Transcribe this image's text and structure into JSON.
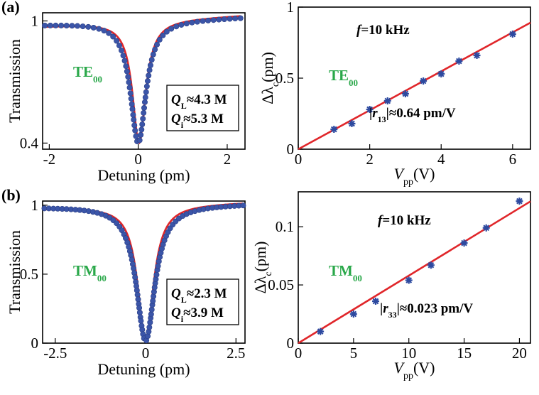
{
  "chart_data": [
    {
      "id": "a-left",
      "panel_label": "(a)",
      "type": "line",
      "xlabel": "Detuning (pm)",
      "ylabel": "Transmission",
      "xlim": [
        -2.15,
        2.4
      ],
      "ylim": [
        0.37,
        1.04
      ],
      "xticks": [
        -2,
        0,
        2
      ],
      "xtick_labels": [
        "-2",
        "0",
        "2"
      ],
      "yticks": [
        1,
        0.4
      ],
      "ytick_labels": [
        "1",
        "0.4"
      ],
      "mode_label": "TE",
      "mode_sub": "00",
      "q_labels": [
        {
          "sym": "Q",
          "sub": "L",
          "text": "≈4.3 M"
        },
        {
          "sym": "Q",
          "sub": "i",
          "text": "≈5.3 M"
        }
      ],
      "series": [
        {
          "kind": "measured-points",
          "curve": {
            "center": 0.0,
            "fwhm": 0.42,
            "depth": 0.6,
            "tilt": 0.008
          },
          "x_range": [
            -2.1,
            2.3
          ],
          "n": 70
        },
        {
          "kind": "lorentzian-fit",
          "curve": {
            "center": 0.02,
            "fwhm": 0.36,
            "depth": 0.6,
            "tilt": 0.012
          },
          "x_range": [
            -2.1,
            2.3
          ]
        }
      ]
    },
    {
      "id": "a-right",
      "type": "scatter",
      "xlabel_sym": "V",
      "xlabel_sub": "pp",
      "xlabel_unit": "(V)",
      "ylabel_sym": "Δλ",
      "ylabel_sub": "c",
      "ylabel_unit": "(pm)",
      "xlim": [
        0,
        6.5
      ],
      "ylim": [
        0,
        1.0
      ],
      "xticks": [
        0,
        2,
        4,
        6
      ],
      "xtick_labels": [
        "0",
        "2",
        "4",
        "6"
      ],
      "yticks": [
        0,
        0.5,
        1
      ],
      "ytick_labels": [
        "0",
        "0.5",
        "1"
      ],
      "freq_label": "=10 kHz",
      "freq_sym": "f",
      "mode_label": "TE",
      "mode_sub": "00",
      "coef_label": {
        "sym": "r",
        "sub": "13",
        "text": "≈0.64 pm/V"
      },
      "series": [
        {
          "kind": "data",
          "x": [
            1,
            1.5,
            2,
            2.5,
            3,
            3.5,
            4,
            4.5,
            5,
            6
          ],
          "y": [
            0.14,
            0.18,
            0.28,
            0.34,
            0.39,
            0.48,
            0.53,
            0.62,
            0.66,
            0.81
          ]
        },
        {
          "kind": "linear-fit",
          "slope": 0.137,
          "intercept": 0
        }
      ]
    },
    {
      "id": "b-left",
      "panel_label": "(b)",
      "type": "line",
      "xlabel": "Detuning (pm)",
      "ylabel": "Transmission",
      "xlim": [
        -2.85,
        2.75
      ],
      "ylim": [
        0,
        1.03
      ],
      "xticks": [
        -2.5,
        0,
        2.5
      ],
      "xtick_labels": [
        "-2.5",
        "0",
        "2.5"
      ],
      "yticks": [
        0,
        0.5,
        1
      ],
      "ytick_labels": [
        "0",
        "0.5",
        "1"
      ],
      "mode_label": "TM",
      "mode_sub": "00",
      "q_labels": [
        {
          "sym": "Q",
          "sub": "L",
          "text": "≈2.3 M"
        },
        {
          "sym": "Q",
          "sub": "i",
          "text": "≈3.9 M"
        }
      ],
      "series": [
        {
          "kind": "measured-points",
          "curve": {
            "center": 0.0,
            "fwhm": 0.62,
            "depth": 0.985,
            "tilt": 0.004
          },
          "x_range": [
            -2.8,
            2.7
          ],
          "n": 90
        },
        {
          "kind": "lorentzian-fit",
          "curve": {
            "center": 0.0,
            "fwhm": 0.52,
            "depth": 0.99,
            "tilt": 0.008
          },
          "x_range": [
            -2.8,
            2.7
          ]
        }
      ]
    },
    {
      "id": "b-right",
      "type": "scatter",
      "xlabel_sym": "V",
      "xlabel_sub": "pp",
      "xlabel_unit": "(V)",
      "ylabel_sym": "Δλ",
      "ylabel_sub": "c",
      "ylabel_unit": "(pm)",
      "xlim": [
        0,
        21
      ],
      "ylim": [
        0,
        0.13
      ],
      "xticks": [
        0,
        5,
        10,
        15,
        20
      ],
      "xtick_labels": [
        "0",
        "5",
        "10",
        "15",
        "20"
      ],
      "yticks": [
        0,
        0.05,
        0.1
      ],
      "ytick_labels": [
        "0",
        "0.05",
        "0.1"
      ],
      "freq_label": "=10 kHz",
      "freq_sym": "f",
      "mode_label": "TM",
      "mode_sub": "00",
      "coef_label": {
        "sym": "r",
        "sub": "33",
        "text": "≈0.023 pm/V"
      },
      "series": [
        {
          "kind": "data",
          "x": [
            2,
            5,
            7,
            10,
            12,
            15,
            17,
            20
          ],
          "y": [
            0.01,
            0.025,
            0.036,
            0.054,
            0.067,
            0.086,
            0.099,
            0.122
          ]
        },
        {
          "kind": "linear-fit",
          "slope": 0.0058,
          "intercept": 0
        }
      ]
    }
  ],
  "colors": {
    "fit": "#e0262a",
    "points": "#3b55a8",
    "mode_label": "#2aa84a"
  }
}
